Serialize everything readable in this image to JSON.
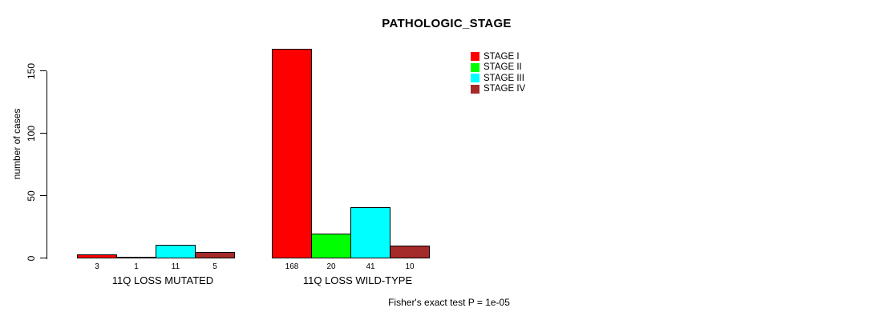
{
  "chart_data": {
    "type": "bar",
    "title": "PATHOLOGIC_STAGE",
    "ylabel": "number of cases",
    "xlabel": "",
    "yticks": [
      0,
      50,
      100,
      150
    ],
    "ylim": [
      0,
      175
    ],
    "grid": false,
    "legend_position": "top-right",
    "legend": [
      {
        "label": "STAGE I",
        "color": "#FF0000"
      },
      {
        "label": "STAGE II",
        "color": "#00FF00"
      },
      {
        "label": "STAGE III",
        "color": "#00FFFF"
      },
      {
        "label": "STAGE IV",
        "color": "#A52A2A"
      }
    ],
    "groups": [
      {
        "label": "11Q LOSS MUTATED",
        "values": [
          3,
          1,
          11,
          5
        ]
      },
      {
        "label": "11Q LOSS WILD-TYPE",
        "values": [
          168,
          20,
          41,
          10
        ]
      }
    ],
    "footnote": "Fisher's exact test P = 1e-05"
  }
}
